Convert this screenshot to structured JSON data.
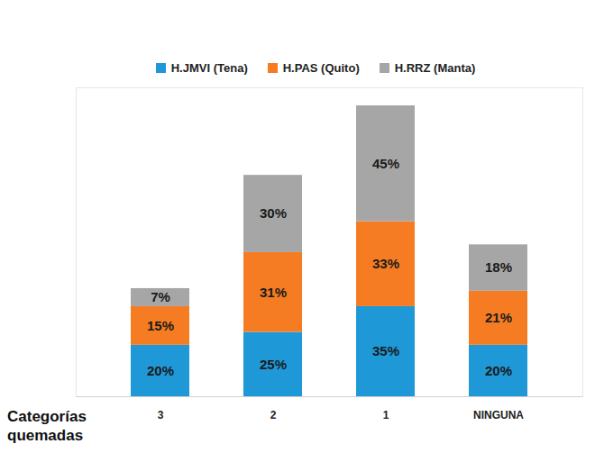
{
  "chart_data": {
    "type": "bar",
    "stacked": true,
    "data_labels": true,
    "tick_labels": "x",
    "xlabel": "Categorías quemadas",
    "categories": [
      "3",
      "2",
      "1",
      "NINGUNA"
    ],
    "ylim": [
      0,
      120
    ],
    "legend": "top",
    "series": [
      {
        "name": "H.JMVI (Tena)",
        "color": "#1e98d7",
        "values": [
          20,
          25,
          35,
          20
        ],
        "value_labels": [
          "20%",
          "25%",
          "35%",
          "20%"
        ]
      },
      {
        "name": "H.PAS (Quito)",
        "color": "#f57c22",
        "values": [
          15,
          31,
          33,
          21
        ],
        "value_labels": [
          "15%",
          "31%",
          "33%",
          "21%"
        ]
      },
      {
        "name": "H.RRZ (Manta)",
        "color": "#a6a6a6",
        "values": [
          7,
          30,
          45,
          18
        ],
        "value_labels": [
          "7%",
          "30%",
          "45%",
          "18%"
        ]
      }
    ]
  }
}
